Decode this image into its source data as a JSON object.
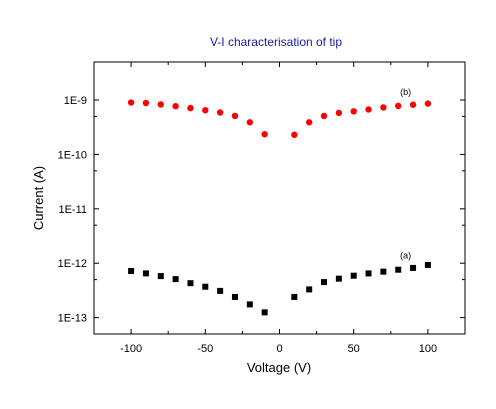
{
  "chart_data": {
    "type": "scatter",
    "title": "V-I characterisation of tip",
    "title_color": "#1a1aa0",
    "xlabel": "Voltage (V)",
    "ylabel": "Current (A)",
    "xlim": [
      -125,
      125
    ],
    "ylim": [
      5e-14,
      5e-09
    ],
    "yscale": "log",
    "xticks": [
      -100,
      -50,
      0,
      50,
      100
    ],
    "xtick_labels": [
      "-100",
      "-50",
      "0",
      "50",
      "100"
    ],
    "yticks": [
      1e-13,
      1e-12,
      1e-11,
      1e-10,
      1e-09
    ],
    "ytick_labels": [
      "1E-13",
      "1E-12",
      "1E-11",
      "1E-10",
      "1E-9"
    ],
    "grid": false,
    "series": [
      {
        "name": "(b)",
        "color": "#ff0000",
        "marker": "circle",
        "x": [
          -100,
          -90,
          -80,
          -70,
          -60,
          -50,
          -40,
          -30,
          -20,
          -10,
          10,
          20,
          30,
          40,
          50,
          60,
          70,
          80,
          90,
          100
        ],
        "y": [
          9e-10,
          8.8e-10,
          8.3e-10,
          7.7e-10,
          7.1e-10,
          6.5e-10,
          5.9e-10,
          5.1e-10,
          3.9e-10,
          2.35e-10,
          2.3e-10,
          3.9e-10,
          5.1e-10,
          5.8e-10,
          6.2e-10,
          6.7e-10,
          7.3e-10,
          7.8e-10,
          8.2e-10,
          8.6e-10
        ]
      },
      {
        "name": "(a)",
        "color": "#000000",
        "marker": "square",
        "x": [
          -100,
          -90,
          -80,
          -70,
          -60,
          -50,
          -40,
          -30,
          -20,
          -10,
          10,
          20,
          30,
          40,
          50,
          60,
          70,
          80,
          90,
          100
        ],
        "y": [
          7.2e-13,
          6.5e-13,
          5.8e-13,
          5.1e-13,
          4.3e-13,
          3.7e-13,
          3.1e-13,
          2.4e-13,
          1.75e-13,
          1.25e-13,
          2.4e-13,
          3.3e-13,
          4.5e-13,
          5.2e-13,
          5.9e-13,
          6.5e-13,
          7e-13,
          7.6e-13,
          8.2e-13,
          9.3e-13
        ]
      }
    ]
  }
}
